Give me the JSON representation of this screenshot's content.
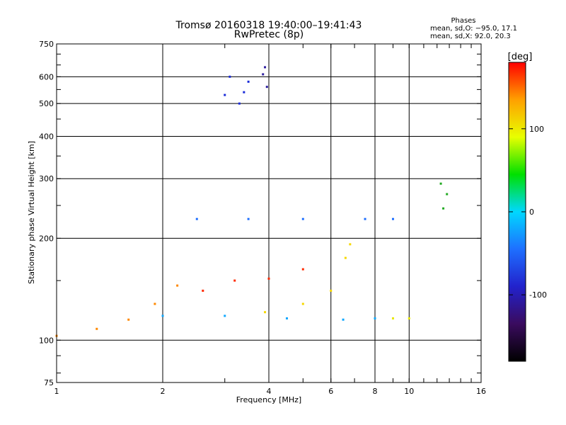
{
  "chart_data": {
    "type": "scatter",
    "title": "Tromsø 20160318 19:40:00–19:41:43",
    "subtitle": "RwPretec (8p)",
    "xlabel": "Frequency [MHz]",
    "ylabel": "Stationary phase Virtual Height [km]",
    "x_scale": "log",
    "y_scale": "log",
    "xlim": [
      1,
      16
    ],
    "ylim": [
      75,
      750
    ],
    "x_ticks": [
      1,
      2,
      4,
      6,
      8,
      10,
      16
    ],
    "y_ticks": [
      75,
      100,
      200,
      300,
      400,
      500,
      600,
      750
    ],
    "grid": true,
    "phases": {
      "title": "Phases",
      "line_o": "mean, sd,O: −95.0, 17.1",
      "line_x": "mean, sd,X:  92.0, 20.3"
    },
    "colorbar": {
      "label": "[deg]",
      "range": [
        -180,
        180
      ],
      "ticks": [
        100,
        0,
        -100
      ],
      "colormap": [
        "#000000",
        "#3a0b5e",
        "#2222cc",
        "#1e6fff",
        "#00d8ff",
        "#00e000",
        "#e8ff00",
        "#ffa000",
        "#ff0000"
      ]
    },
    "series": [
      {
        "points": [
          [
            3.0,
            530
          ],
          [
            3.4,
            540
          ],
          [
            3.1,
            600
          ],
          [
            3.3,
            500
          ],
          [
            3.5,
            580
          ]
        ]
      },
      {
        "points": [
          [
            3.95,
            560
          ],
          [
            3.85,
            610
          ],
          [
            3.9,
            640
          ]
        ]
      },
      {
        "points": [
          [
            2.5,
            228
          ],
          [
            3.5,
            228
          ],
          [
            5.0,
            228
          ],
          [
            7.5,
            228
          ],
          [
            9.0,
            228
          ]
        ]
      },
      {
        "points": [
          [
            2.0,
            118
          ],
          [
            3.0,
            118
          ],
          [
            4.5,
            116
          ],
          [
            6.5,
            115
          ],
          [
            8.0,
            116
          ]
        ]
      },
      {
        "points": [
          [
            9.0,
            116
          ],
          [
            10.0,
            116
          ]
        ]
      },
      {
        "points": [
          [
            3.9,
            121
          ],
          [
            5.0,
            128
          ],
          [
            6.0,
            140
          ],
          [
            6.6,
            175
          ],
          [
            6.8,
            192
          ]
        ]
      },
      {
        "points": [
          [
            1.0,
            103
          ],
          [
            1.3,
            108
          ],
          [
            1.6,
            115
          ],
          [
            1.9,
            128
          ],
          [
            2.2,
            145
          ]
        ]
      },
      {
        "points": [
          [
            2.6,
            140
          ],
          [
            3.2,
            150
          ],
          [
            4.0,
            152
          ],
          [
            5.0,
            162
          ]
        ]
      },
      {
        "points": [
          [
            12.3,
            290
          ],
          [
            12.5,
            245
          ],
          [
            12.8,
            270
          ]
        ]
      }
    ]
  }
}
